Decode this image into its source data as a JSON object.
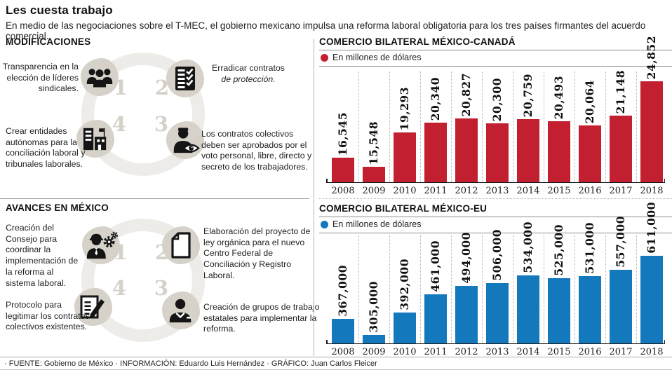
{
  "header": {
    "title": "Les cuesta trabajo",
    "subtitle": "En medio de las negociaciones sobre el T-MEC, el gobierno mexicano impulsa una reforma laboral obligatoria para los tres países firmantes del acuerdo comercial."
  },
  "modificaciones": {
    "heading": "MODIFICACIONES",
    "items": [
      {
        "num": "1",
        "icon": "union-members-icon",
        "text": "Transparencia en la elección de líderes sindicales."
      },
      {
        "num": "2",
        "icon": "checklist-icon",
        "text": "Erradicar contratos",
        "text_italic": "de protección."
      },
      {
        "num": "3",
        "icon": "worker-vote-eye-icon",
        "text": "Los contratos colectivos deben ser aprobados por el voto personal, libre, directo y secreto de los trabajadores."
      },
      {
        "num": "4",
        "icon": "institution-building-icon",
        "text": "Crear entidades autónomas para la conciliación laboral y tribunales laborales."
      }
    ]
  },
  "avances": {
    "heading": "AVANCES EN MÉXICO",
    "items": [
      {
        "num": "1",
        "icon": "worker-gears-icon",
        "text": "Creación del Consejo para coordinar la implementación de la reforma al sistema laboral."
      },
      {
        "num": "2",
        "icon": "document-icon",
        "text": "Elaboración del proyecto de ley orgánica para el nuevo Centro Federal de Conciliación y Registro Laboral."
      },
      {
        "num": "3",
        "icon": "official-person-icon",
        "text": "Creación de grupos de trabajo estatales para implementar la reforma."
      },
      {
        "num": "4",
        "icon": "contract-pen-icon",
        "text": "Protocolo para legitimar los contratos colectivos existentes."
      }
    ]
  },
  "chart_data": [
    {
      "type": "bar",
      "title": "COMERCIO BILATERAL MÉXICO-CANADÁ",
      "legend": "En millones de dólares",
      "legend_position": "top-left",
      "bar_color": "#c22030",
      "categories": [
        "2008",
        "2009",
        "2010",
        "2011",
        "2012",
        "2013",
        "2014",
        "2015",
        "2016",
        "2017",
        "2018"
      ],
      "values": [
        16545,
        15548,
        19293,
        20340,
        20827,
        20300,
        20759,
        20493,
        20064,
        21148,
        24852
      ],
      "value_labels": [
        "16,545",
        "15,548",
        "19,293",
        "20,340",
        "20,827",
        "20,300",
        "20,759",
        "20,493",
        "20,064",
        "21,148",
        "24,852"
      ],
      "xlabel": "",
      "ylabel": "",
      "ylim": [
        13900,
        24852
      ],
      "grid": "vertical-dotted"
    },
    {
      "type": "bar",
      "title": "COMERCIO BILATERAL MÉXICO-EU",
      "legend": "En millones de dólares",
      "legend_position": "top-left",
      "bar_color": "#1478bc",
      "categories": [
        "2008",
        "2009",
        "2010",
        "2011",
        "2012",
        "2013",
        "2014",
        "2015",
        "2016",
        "2017",
        "2018"
      ],
      "values": [
        367000,
        305000,
        392000,
        461000,
        494000,
        506000,
        534000,
        525000,
        531000,
        557000,
        611000
      ],
      "value_labels": [
        "367,000",
        "305,000",
        "392,000",
        "461,000",
        "494,000",
        "506,000",
        "534,000",
        "525,000",
        "531,000",
        "557,000",
        "611,000"
      ],
      "xlabel": "",
      "ylabel": "",
      "ylim": [
        272000,
        611000
      ],
      "grid": "vertical-dotted"
    }
  ],
  "footer": {
    "credits": "· FUENTE: Gobierno de México · INFORMACIÓN: Eduardo Luis Hernández · GRÁFICO: Juan Carlos Fleicer"
  }
}
